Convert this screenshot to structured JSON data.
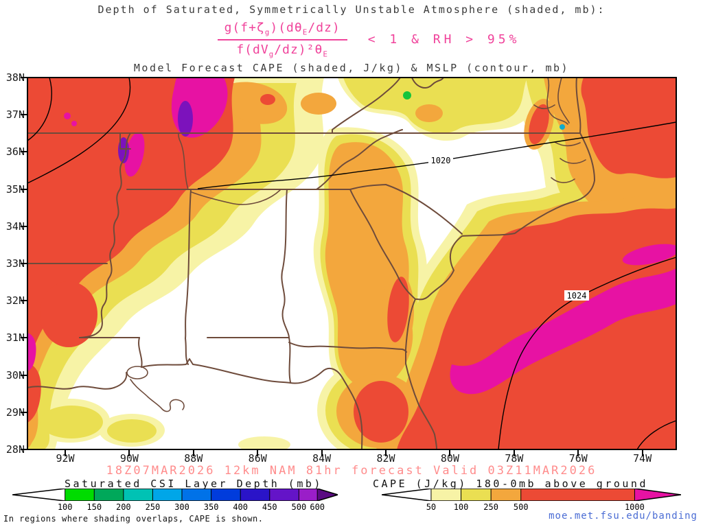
{
  "header": {
    "title_top": "Depth of Saturated, Symmetrically Unstable Atmosphere (shaded, mb):",
    "formula": {
      "num_parts": [
        "g(f+ζ",
        "g",
        ")(dθ",
        "E",
        "/dz)"
      ],
      "den_parts": [
        "f(dV",
        "g",
        "/dz)²θ",
        "E"
      ],
      "condition": "< 1 & RH > 95%"
    },
    "title_main": "Model Forecast CAPE (shaded, J/kg) & MSLP (contour, mb)"
  },
  "map": {
    "lat_labels": [
      "38N",
      "37N",
      "36N",
      "35N",
      "34N",
      "33N",
      "32N",
      "31N",
      "30N",
      "29N",
      "28N"
    ],
    "lon_labels": [
      "92W",
      "90W",
      "88W",
      "86W",
      "84W",
      "82W",
      "80W",
      "78W",
      "76W",
      "74W"
    ],
    "contour_labels": [
      "1020",
      "1024"
    ]
  },
  "footer": {
    "forecast_line": "18Z07MAR2026 12km NAM 81hr forecast Valid 03Z11MAR2026",
    "legend_csi": {
      "title": "Saturated CSI Layer Depth (mb)",
      "ticks": [
        "100",
        "150",
        "200",
        "250",
        "300",
        "350",
        "400",
        "450",
        "500",
        "600"
      ],
      "colors": [
        "#ffffff",
        "#00dc00",
        "#00a85a",
        "#00c2b4",
        "#00a6e8",
        "#0072e8",
        "#003cdc",
        "#2a14c8",
        "#6414c8",
        "#9a1ec8",
        "#5a0a82"
      ],
      "seg_weights": [
        1.8,
        1,
        1,
        1,
        1,
        1,
        1,
        1,
        1,
        0.63,
        0.7
      ]
    },
    "legend_cape": {
      "title": "CAPE (J/kg) 180-0mb above ground",
      "ticks": [
        "50",
        "100",
        "250",
        "500",
        "1000"
      ],
      "colors": [
        "#ffffff",
        "#f7f3a6",
        "#eadf52",
        "#f3a73d",
        "#ec4a35",
        "#e712a3"
      ],
      "seg_weights": [
        1.65,
        1,
        1,
        1,
        3.8,
        1.55
      ]
    },
    "note": "In regions where shading overlaps, CAPE is shown.",
    "link": "moe.met.fsu.edu/banding"
  },
  "chart_data": {
    "type": "heatmap",
    "title": "Model Forecast CAPE (shaded, J/kg) & MSLP (contour, mb)",
    "subtitle": "Depth of Saturated, Symmetrically Unstable Atmosphere (shaded, mb) where CSI ratio < 1 & RH > 95%",
    "model_run": "18Z07MAR2026",
    "model": "12km NAM",
    "forecast_hour": "81hr",
    "valid_time": "03Z11MAR2026",
    "x_ticks": [
      "92W",
      "90W",
      "88W",
      "86W",
      "84W",
      "82W",
      "80W",
      "78W",
      "76W",
      "74W"
    ],
    "y_ticks": [
      "38N",
      "37N",
      "36N",
      "35N",
      "34N",
      "33N",
      "32N",
      "31N",
      "30N",
      "29N",
      "28N"
    ],
    "mslp_contour_labels_mb": [
      1020,
      1024
    ],
    "scales": {
      "csi_layer_depth_mb": {
        "ticks": [
          100,
          150,
          200,
          250,
          300,
          350,
          400,
          450,
          500,
          600
        ],
        "colors": [
          "#ffffff",
          "#00dc00",
          "#00a85a",
          "#00c2b4",
          "#00a6e8",
          "#0072e8",
          "#003cdc",
          "#2a14c8",
          "#6414c8",
          "#9a1ec8",
          "#5a0a82"
        ]
      },
      "cape_j_per_kg": {
        "ticks": [
          50,
          100,
          250,
          500,
          1000
        ],
        "colors": [
          "#ffffff",
          "#f7f3a6",
          "#eadf52",
          "#f3a73d",
          "#ec4a35",
          "#e712a3"
        ]
      }
    },
    "notes": "Shaded CAPE maxima (>1000 J/kg, magenta) over AR/MO border region, top-center near TN, and a broad offshore band southeast of the Carolinas/Georgia; MSLP contours 1020 mb across TN/VA and 1024 mb over the southeast Atlantic."
  }
}
